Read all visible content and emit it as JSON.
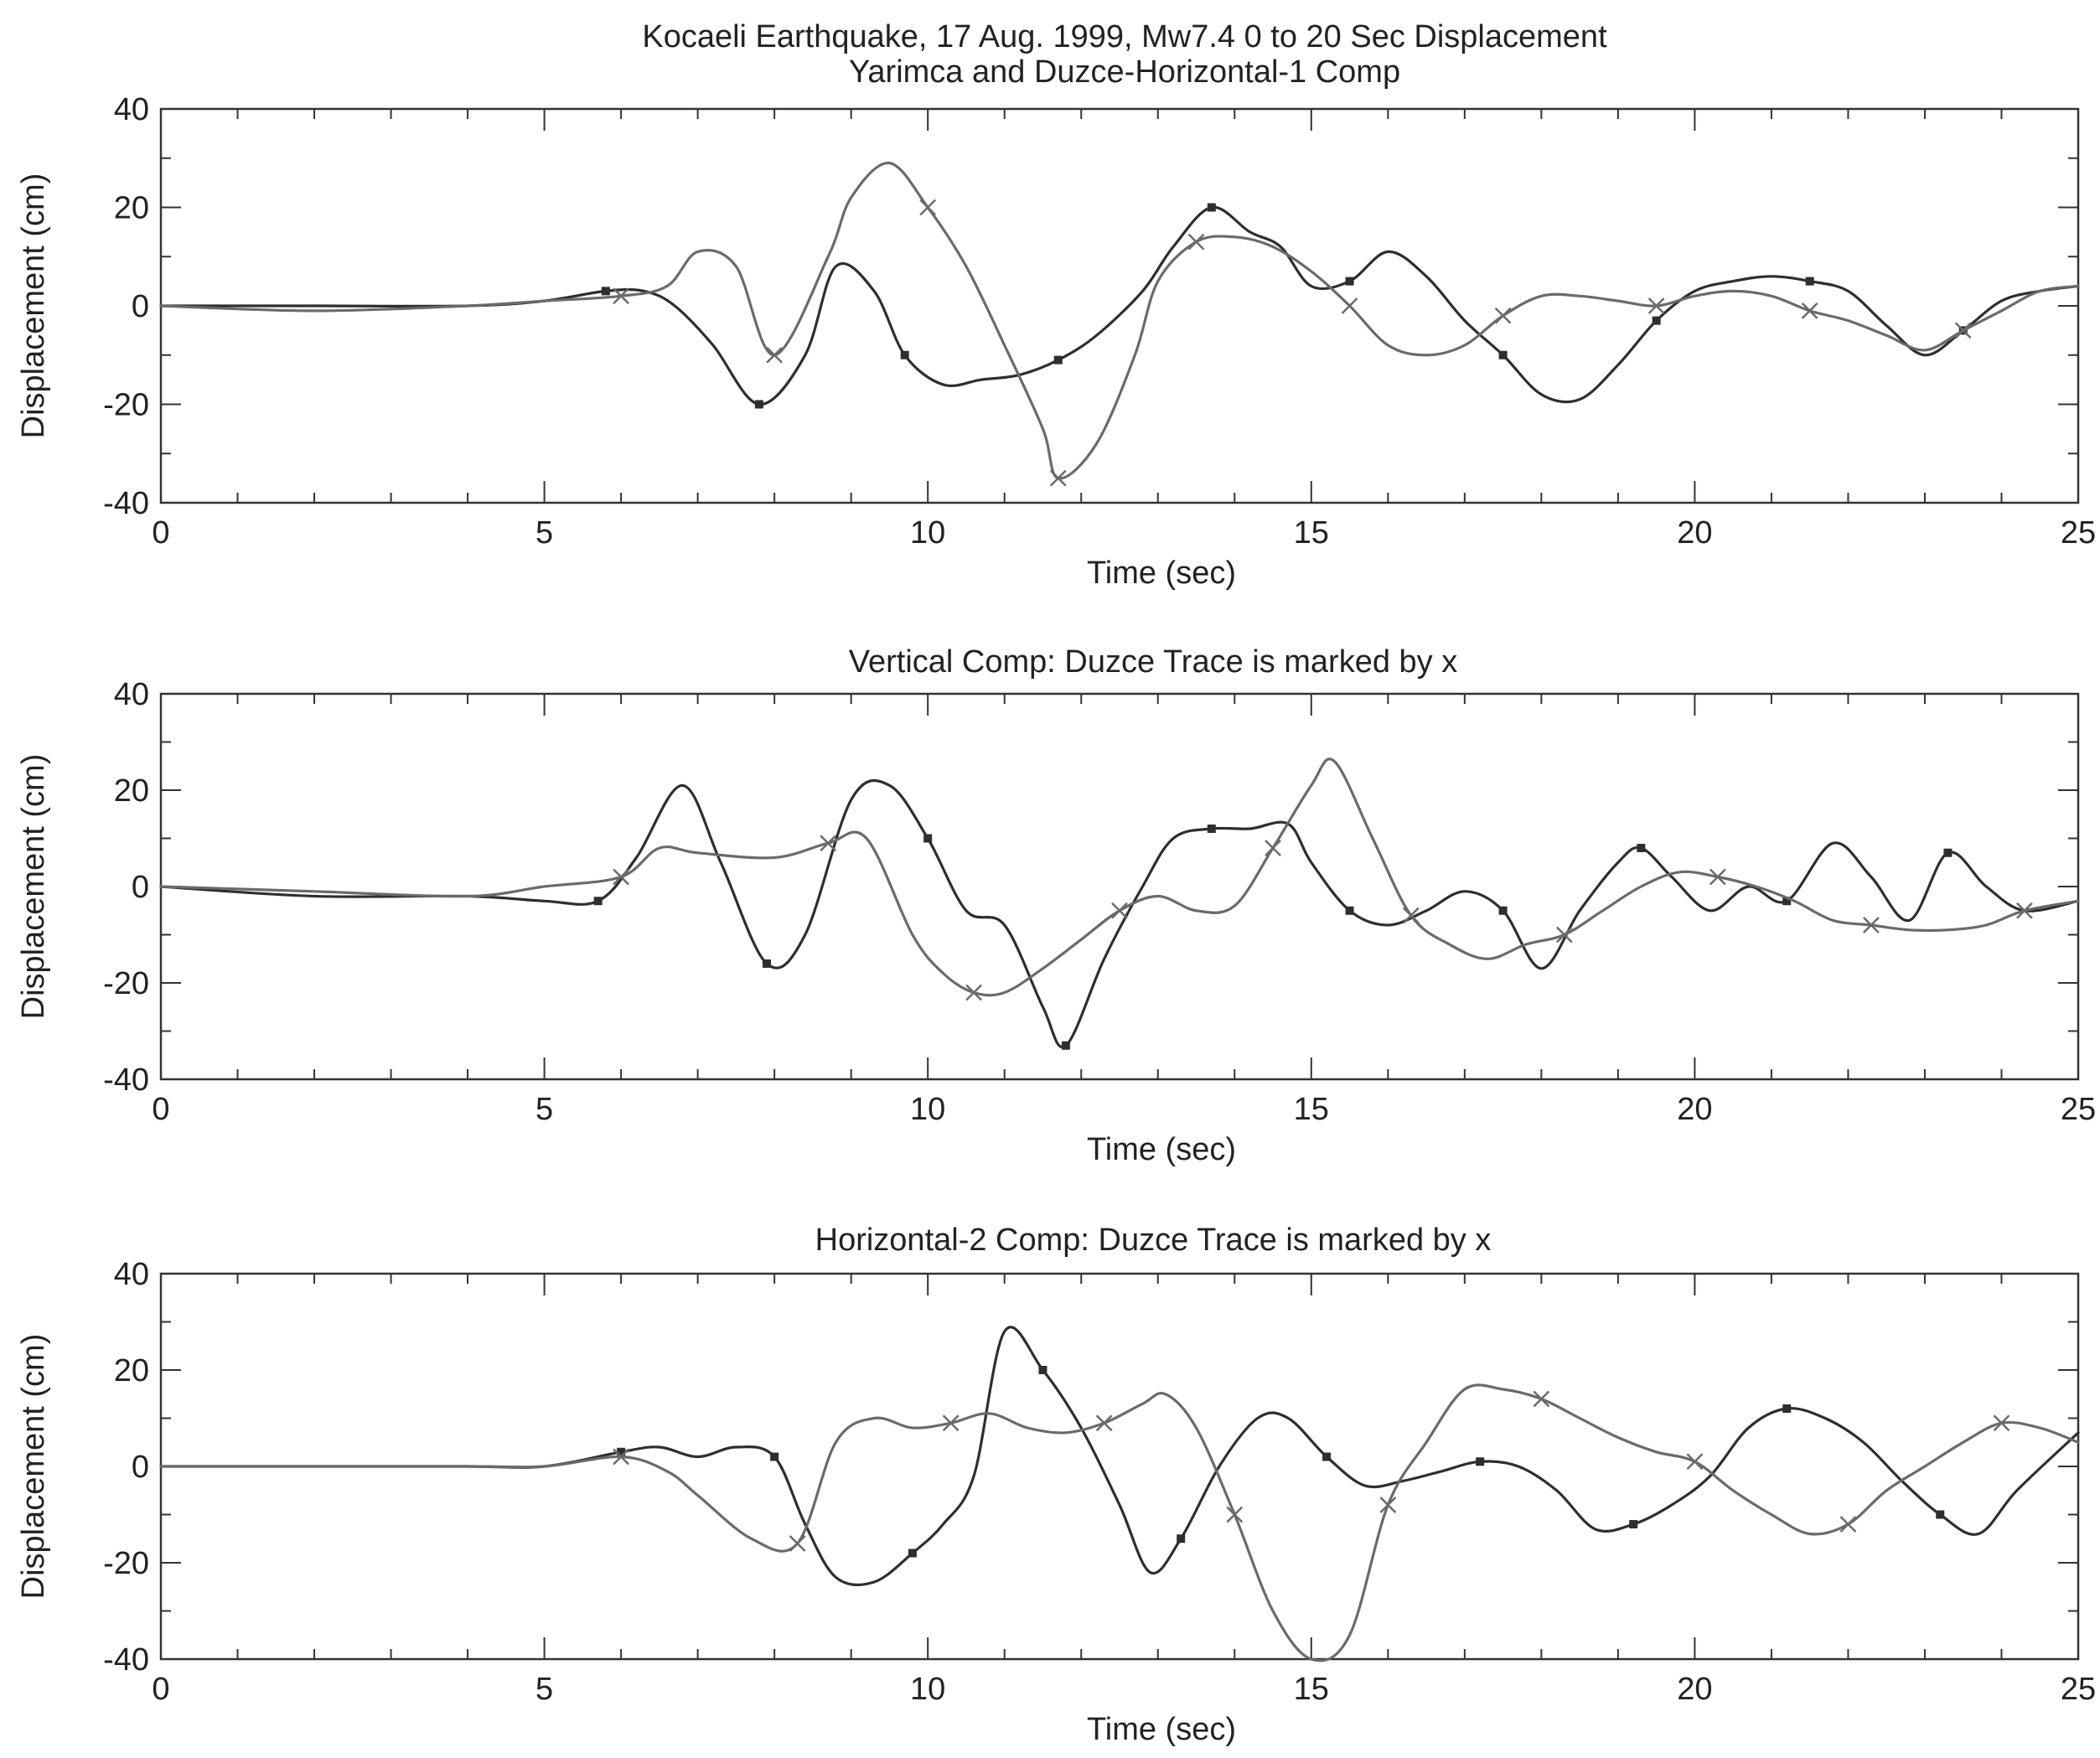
{
  "figure": {
    "title_line1": "Kocaeli Earthquake, 17 Aug. 1999, Mw7.4 0 to 20 Sec Displacement",
    "title_line2": "Yarimca and Duzce-Horizontal-1 Comp"
  },
  "colors": {
    "yarimca": "#2e2e2e",
    "duzce": "#6a6a6a",
    "axes": "#333333",
    "background": "#ffffff"
  },
  "chart_data": [
    {
      "type": "line",
      "title": "",
      "xlabel": "Time (sec)",
      "ylabel": "Displacement (cm)",
      "xlim": [
        0,
        25
      ],
      "ylim": [
        -40,
        40
      ],
      "xticks": [
        "0",
        "5",
        "10",
        "15",
        "20",
        "25"
      ],
      "yticks": [
        "40",
        "20",
        "0",
        "-20",
        "-40"
      ],
      "series": [
        {
          "x": [
            0,
            2,
            4,
            5,
            5.8,
            6.3,
            6.7,
            7.2,
            7.8,
            8.4,
            8.8,
            9.3,
            9.7,
            10.2,
            10.7,
            11.2,
            11.7,
            12.2,
            12.8,
            13.2,
            13.7,
            14.2,
            14.6,
            15,
            15.5,
            16,
            16.5,
            17,
            17.5,
            18,
            18.5,
            19,
            19.5,
            20,
            20.5,
            21,
            21.5,
            22,
            22.5,
            23,
            23.5,
            24,
            24.5,
            25
          ],
          "y": [
            0,
            0,
            0,
            1,
            3,
            3,
            0,
            -8,
            -20,
            -10,
            8,
            3,
            -10,
            -16,
            -15,
            -14,
            -11,
            -6,
            3,
            12,
            20,
            15,
            12,
            4,
            5,
            11,
            6,
            -3,
            -10,
            -18,
            -19,
            -12,
            -3,
            3,
            5,
            6,
            5,
            3,
            -4,
            -10,
            -5,
            1,
            3,
            4
          ]
        },
        {
          "x": [
            0,
            2,
            4,
            5,
            6,
            6.6,
            7,
            7.5,
            8,
            8.7,
            9,
            9.5,
            10,
            10.5,
            11,
            11.5,
            11.7,
            12.2,
            12.7,
            13,
            13.5,
            14,
            14.5,
            15,
            15.5,
            16,
            16.5,
            17,
            17.5,
            18,
            18.5,
            19,
            19.5,
            20,
            20.5,
            21,
            21.5,
            22,
            22.5,
            23,
            23.5,
            24,
            24.5,
            25
          ],
          "y": [
            0,
            -1,
            0,
            1,
            2,
            4,
            11,
            8,
            -10,
            10,
            22,
            29,
            20,
            8,
            -8,
            -25,
            -35,
            -28,
            -10,
            5,
            13,
            14,
            12,
            7,
            0,
            -8,
            -10,
            -8,
            -2,
            2,
            2,
            1,
            0,
            2,
            3,
            2,
            -1,
            -3,
            -6,
            -9,
            -5,
            -1,
            3,
            4
          ]
        }
      ]
    },
    {
      "type": "line",
      "title": "Vertical Comp: Duzce Trace is marked by x",
      "xlabel": "Time (sec)",
      "ylabel": "Displacement (cm)",
      "xlim": [
        0,
        25
      ],
      "ylim": [
        -40,
        40
      ],
      "xticks": [
        "0",
        "5",
        "10",
        "15",
        "20",
        "25"
      ],
      "yticks": [
        "40",
        "20",
        "0",
        "-20",
        "-40"
      ],
      "series": [
        {
          "x": [
            0,
            2,
            4,
            5,
            5.7,
            6.2,
            6.8,
            7.3,
            7.9,
            8.4,
            9,
            9.5,
            10,
            10.5,
            11,
            11.5,
            11.8,
            12.3,
            12.8,
            13.2,
            13.7,
            14.2,
            14.7,
            15,
            15.5,
            16,
            16.5,
            17,
            17.5,
            18,
            18.5,
            19,
            19.3,
            19.7,
            20.2,
            20.7,
            21.2,
            21.8,
            22.3,
            22.8,
            23.3,
            23.8,
            24.3,
            25
          ],
          "y": [
            0,
            -2,
            -2,
            -3,
            -3,
            6,
            21,
            5,
            -16,
            -10,
            18,
            21,
            10,
            -5,
            -8,
            -25,
            -33,
            -15,
            0,
            10,
            12,
            12,
            13,
            5,
            -5,
            -8,
            -5,
            -1,
            -5,
            -17,
            -5,
            5,
            8,
            2,
            -5,
            0,
            -3,
            9,
            2,
            -7,
            7,
            0,
            -5,
            -3
          ]
        },
        {
          "x": [
            0,
            2,
            4,
            5,
            6,
            6.5,
            7,
            8,
            8.7,
            9.2,
            9.8,
            10.2,
            10.6,
            11,
            11.5,
            12,
            12.5,
            13,
            13.5,
            14,
            14.5,
            15,
            15.3,
            15.8,
            16.3,
            16.8,
            17.3,
            17.8,
            18.3,
            18.8,
            19.3,
            19.8,
            20.3,
            20.8,
            21.3,
            21.8,
            22.3,
            22.8,
            23.3,
            23.8,
            24.3,
            25
          ],
          "y": [
            0,
            -1,
            -2,
            0,
            2,
            8,
            7,
            6,
            9,
            10,
            -10,
            -18,
            -22,
            -22,
            -17,
            -11,
            -5,
            -2,
            -5,
            -4,
            8,
            21,
            26,
            10,
            -6,
            -12,
            -15,
            -12,
            -10,
            -5,
            0,
            3,
            2,
            0,
            -3,
            -7,
            -8,
            -9,
            -9,
            -8,
            -5,
            -3
          ]
        }
      ]
    },
    {
      "type": "line",
      "title": "Horizontal-2 Comp: Duzce Trace is marked by x",
      "xlabel": "Time (sec)",
      "ylabel": "Displacement (cm)",
      "xlim": [
        0,
        25
      ],
      "ylim": [
        -40,
        40
      ],
      "xticks": [
        "0",
        "5",
        "10",
        "15",
        "20",
        "25"
      ],
      "yticks": [
        "40",
        "20",
        "0",
        "-20",
        "-40"
      ],
      "series": [
        {
          "x": [
            0,
            2,
            4,
            5,
            6,
            6.5,
            7,
            7.5,
            8,
            8.4,
            8.8,
            9.3,
            9.8,
            10.2,
            10.6,
            11,
            11.5,
            12,
            12.5,
            12.9,
            13.3,
            13.8,
            14.3,
            14.7,
            15.2,
            15.7,
            16.2,
            16.7,
            17.2,
            17.7,
            18.2,
            18.7,
            19.2,
            19.7,
            20.2,
            20.7,
            21.2,
            21.7,
            22.2,
            22.7,
            23.2,
            23.7,
            24.2,
            25
          ],
          "y": [
            0,
            0,
            0,
            0,
            3,
            4,
            2,
            4,
            2,
            -12,
            -23,
            -24,
            -18,
            -12,
            -2,
            28,
            20,
            8,
            -8,
            -22,
            -15,
            0,
            10,
            10,
            2,
            -4,
            -3,
            -1,
            1,
            0,
            -5,
            -13,
            -12,
            -8,
            -2,
            8,
            12,
            10,
            5,
            -3,
            -10,
            -14,
            -5,
            7
          ]
        },
        {
          "x": [
            0,
            2,
            4,
            5,
            6,
            6.6,
            7,
            7.7,
            8.3,
            8.8,
            9.3,
            9.8,
            10.3,
            10.8,
            11.3,
            11.8,
            12.3,
            12.8,
            13.1,
            13.5,
            14,
            14.5,
            15,
            15.5,
            16,
            16.5,
            17,
            17.5,
            18,
            18.5,
            19,
            19.5,
            20,
            20.5,
            21,
            21.5,
            22,
            22.5,
            23,
            23.5,
            24,
            24.5,
            25
          ],
          "y": [
            0,
            0,
            0,
            0,
            2,
            -1,
            -6,
            -15,
            -16,
            5,
            10,
            8,
            9,
            11,
            8,
            7,
            9,
            13,
            15,
            8,
            -10,
            -30,
            -40,
            -35,
            -8,
            5,
            16,
            16,
            14,
            10,
            6,
            3,
            1,
            -5,
            -10,
            -14,
            -12,
            -5,
            0,
            5,
            9,
            8,
            5
          ]
        }
      ]
    }
  ]
}
